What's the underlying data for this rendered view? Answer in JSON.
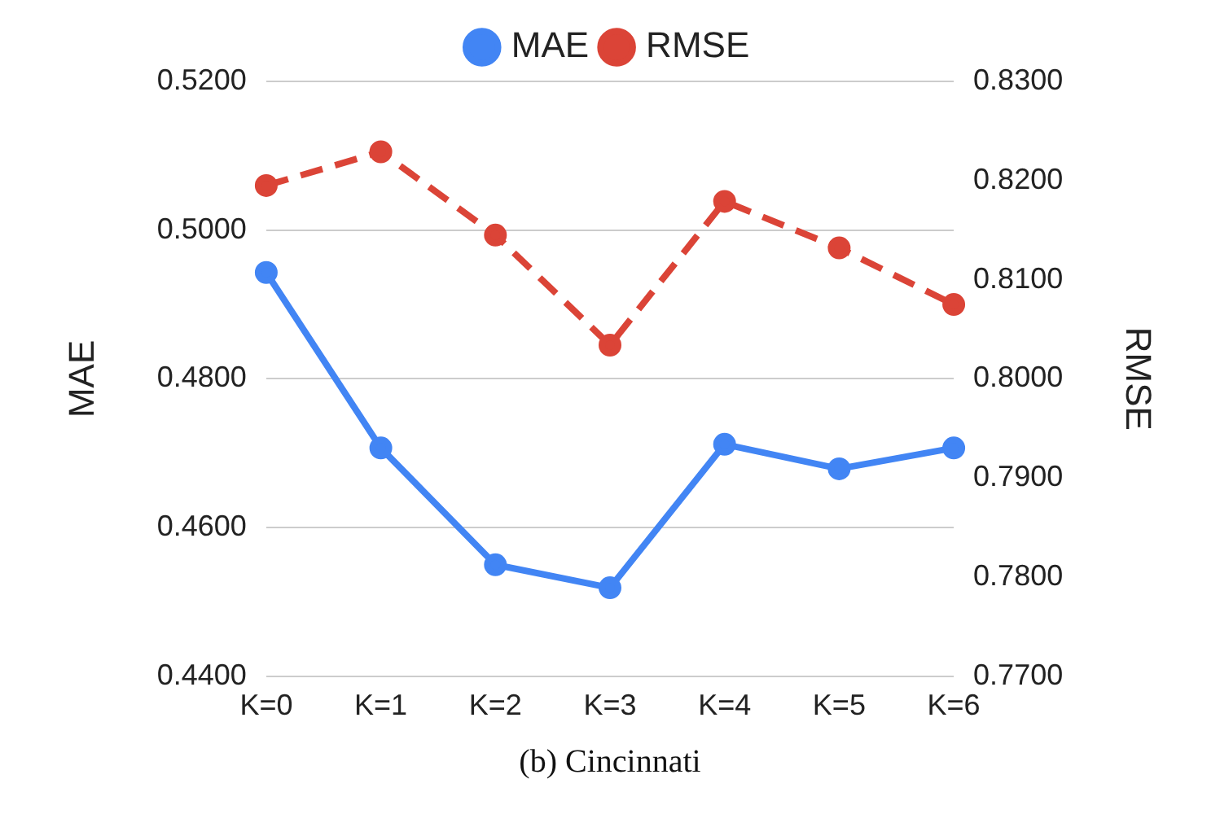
{
  "chart_data": {
    "type": "line",
    "categories": [
      "K=0",
      "K=1",
      "K=2",
      "K=3",
      "K=4",
      "K=5",
      "K=6"
    ],
    "series": [
      {
        "name": "MAE",
        "color": "#4285f4",
        "values": [
          0.4943,
          0.4707,
          0.455,
          0.4519,
          0.4712,
          0.4679,
          0.4707
        ],
        "line_style": "solid"
      },
      {
        "name": "RMSE",
        "color": "#db4437",
        "values": [
          0.8195,
          0.8229,
          0.8145,
          0.8034,
          0.8179,
          0.8132,
          0.8075
        ],
        "axis": "y2",
        "line_style": "dashed"
      }
    ],
    "ylabel": "MAE",
    "y2label": "RMSE",
    "ylim": [
      0.44,
      0.52
    ],
    "yticks": [
      {
        "value": 0.44,
        "label": "0.4400"
      },
      {
        "value": 0.46,
        "label": "0.4600"
      },
      {
        "value": 0.48,
        "label": "0.4800"
      },
      {
        "value": 0.5,
        "label": "0.5000"
      },
      {
        "value": 0.52,
        "label": "0.5200"
      }
    ],
    "y2lim": [
      0.77,
      0.83
    ],
    "y2ticks": [
      {
        "value": 0.77,
        "label": "0.7700"
      },
      {
        "value": 0.78,
        "label": "0.7800"
      },
      {
        "value": 0.79,
        "label": "0.7900"
      },
      {
        "value": 0.8,
        "label": "0.8000"
      },
      {
        "value": 0.81,
        "label": "0.8100"
      },
      {
        "value": 0.82,
        "label": "0.8200"
      },
      {
        "value": 0.83,
        "label": "0.8300"
      }
    ],
    "grid": "y",
    "legend": "top",
    "marker": "circle",
    "annotations": [
      "(b) Cincinnati"
    ]
  }
}
